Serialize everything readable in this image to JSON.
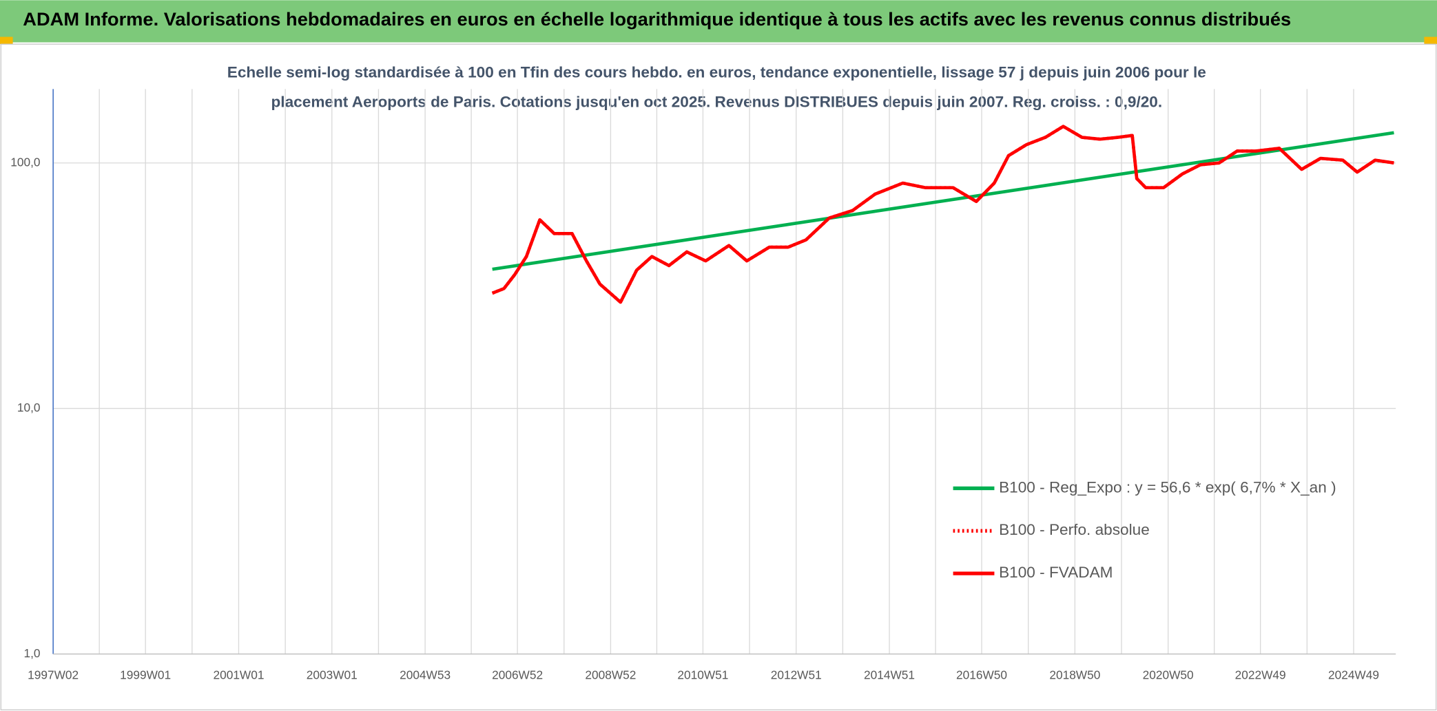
{
  "chart_data": {
    "type": "line",
    "title": "ADAM Informe. Valorisations hebdomadaires en euros en échelle logarithmique identique à tous les actifs avec les revenus connus distribués",
    "subtitle": [
      "Echelle semi-log standardisée à 100 en Tfin des cours hebdo. en euros, tendance exponentielle, lissage 57 j depuis juin 2006 pour le",
      "placement Aeroports de Paris. Cotations jusqu'en oct 2025. Revenus DISTRIBUES depuis juin 2007. Reg. croiss. : 0,9/20."
    ],
    "log_scale": true,
    "grid": true,
    "legend": "right",
    "xlim": [
      "1997W02",
      "2025W44"
    ],
    "xticks": [
      "1997W02",
      "1999W01",
      "2001W01",
      "2003W01",
      "2004W53",
      "2006W52",
      "2008W52",
      "2010W51",
      "2012W51",
      "2014W51",
      "2016W50",
      "2018W50",
      "2020W50",
      "2022W49",
      "2024W49"
    ],
    "ylim": [
      1,
      200
    ],
    "yticks": [
      {
        "value": 1,
        "label": "1,0"
      },
      {
        "value": 10,
        "label": "10,0"
      },
      {
        "value": 100,
        "label": "100,0"
      }
    ],
    "series": [
      {
        "name": "B100 - Reg_Expo : y = 56,6 * exp( 6,7% *  X_an )",
        "color": "#00b050",
        "linestyle": "solid",
        "x": [
          "2006W24",
          "2025W42"
        ],
        "values": [
          36.9,
          132.8
        ]
      },
      {
        "name": "B100 - Perfo. absolue",
        "color": "#ff0000",
        "linestyle": "dotted",
        "x": [
          "2006W24",
          "2006W37",
          "2006W49",
          "2007W10",
          "2007W25",
          "2007W41",
          "2008W09",
          "2008W25",
          "2008W40",
          "2009W11",
          "2009W29",
          "2009W46",
          "2010W13",
          "2010W33",
          "2011W02",
          "2011W28",
          "2011W48",
          "2012W21",
          "2012W42",
          "2013W10",
          "2013W36",
          "2014W10",
          "2014W35",
          "2015W14",
          "2015W39",
          "2016W18",
          "2016W44",
          "2017W12",
          "2017W28",
          "2017W48",
          "2018W17",
          "2018W37",
          "2019W06",
          "2019W26",
          "2019W46",
          "2020W10",
          "2020W15",
          "2020W25",
          "2020W45",
          "2021W14",
          "2021W34",
          "2022W03",
          "2022W23",
          "2022W44",
          "2023W18",
          "2023W43",
          "2024W12",
          "2024W37",
          "2025W01",
          "2025W21",
          "2025W42"
        ],
        "values": [
          29.5,
          30.8,
          35.1,
          41.6,
          58.7,
          51.6,
          51.6,
          39.9,
          32.1,
          27.1,
          36.6,
          41.6,
          38.2,
          43.4,
          39.9,
          46.1,
          39.9,
          45.4,
          45.4,
          48.6,
          59.7,
          64.0,
          74.6,
          82.8,
          79.3,
          79.3,
          69.7,
          82.8,
          107.1,
          118.8,
          127.1,
          140.9,
          127.1,
          125.0,
          127.1,
          129.4,
          86.4,
          79.3,
          79.3,
          90.2,
          98.3,
          100,
          111.8,
          111.8,
          114.7,
          94.2,
          104.4,
          102.6,
          91.8,
          102.6,
          100
        ]
      },
      {
        "name": "B100 - FVADAM",
        "color": "#ff0000",
        "linestyle": "solid",
        "x": [
          "2006W24",
          "2006W37",
          "2006W49",
          "2007W10",
          "2007W25",
          "2007W41",
          "2008W09",
          "2008W25",
          "2008W40",
          "2009W11",
          "2009W29",
          "2009W46",
          "2010W13",
          "2010W33",
          "2011W02",
          "2011W28",
          "2011W48",
          "2012W21",
          "2012W42",
          "2013W10",
          "2013W36",
          "2014W10",
          "2014W35",
          "2015W14",
          "2015W39",
          "2016W18",
          "2016W44",
          "2017W12",
          "2017W28",
          "2017W48",
          "2018W17",
          "2018W37",
          "2019W06",
          "2019W26",
          "2019W46",
          "2020W10",
          "2020W15",
          "2020W25",
          "2020W45",
          "2021W14",
          "2021W34",
          "2022W03",
          "2022W23",
          "2022W44",
          "2023W18",
          "2023W43",
          "2024W12",
          "2024W37",
          "2025W01",
          "2025W21",
          "2025W42"
        ],
        "values": [
          29.5,
          30.8,
          35.1,
          41.6,
          58.7,
          51.6,
          51.6,
          39.9,
          32.1,
          27.1,
          36.6,
          41.6,
          38.2,
          43.4,
          39.9,
          46.1,
          39.9,
          45.4,
          45.4,
          48.6,
          59.7,
          64.0,
          74.6,
          82.8,
          79.3,
          79.3,
          69.7,
          82.8,
          107.1,
          118.8,
          127.1,
          140.9,
          127.1,
          125.0,
          127.1,
          129.4,
          86.4,
          79.3,
          79.3,
          90.2,
          98.3,
          100,
          111.8,
          111.8,
          114.7,
          94.2,
          104.4,
          102.6,
          91.8,
          102.6,
          100
        ]
      }
    ]
  }
}
